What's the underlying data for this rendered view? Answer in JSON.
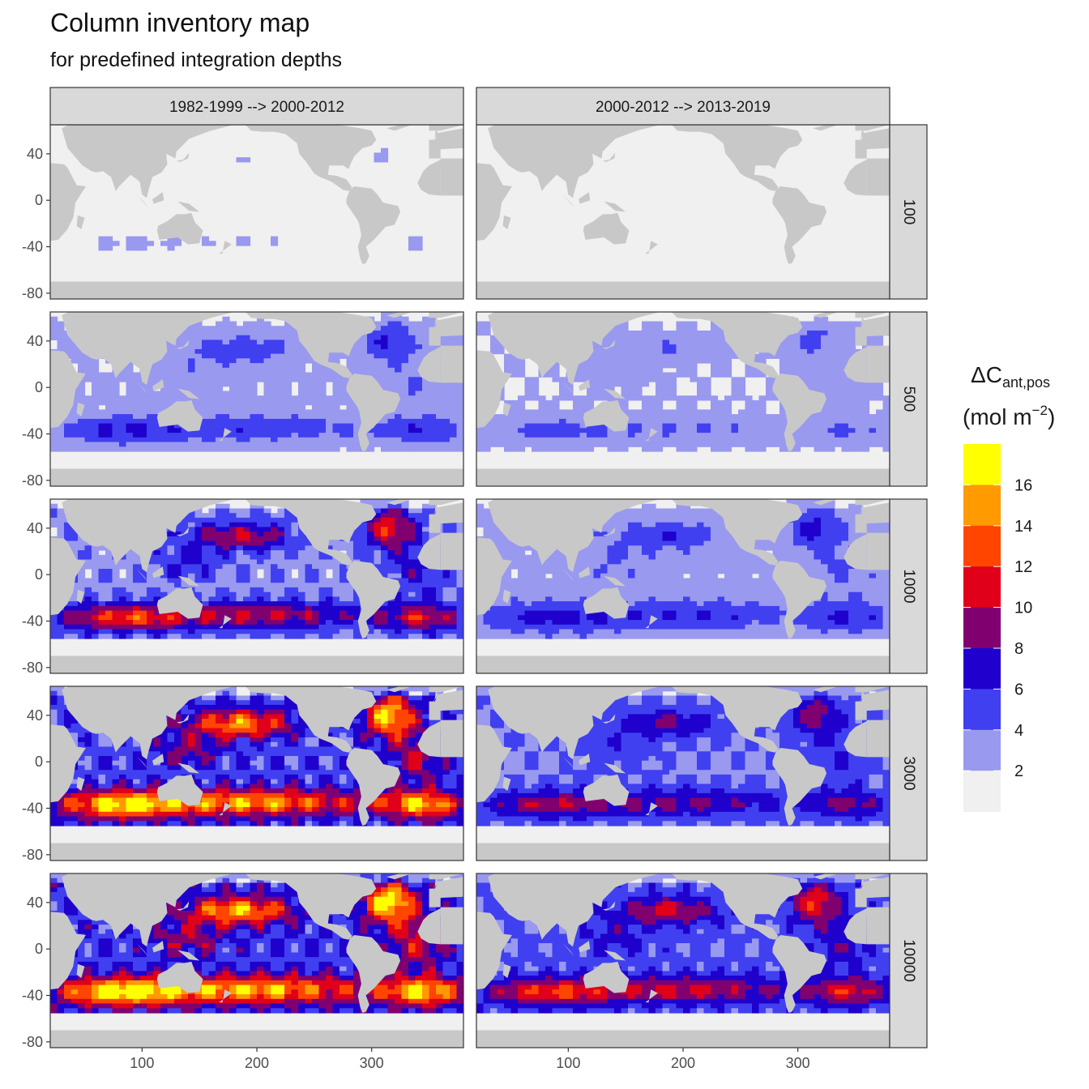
{
  "title": "Column inventory map",
  "subtitle": "for predefined integration depths",
  "chart_data": {
    "type": "heatmap",
    "title": "Column inventory map",
    "subtitle": "for predefined integration depths",
    "xlabel": "",
    "ylabel": "",
    "x_ticks": [
      100,
      200,
      300
    ],
    "y_ticks": [
      40,
      0,
      -40,
      -80
    ],
    "xlim": [
      20,
      380
    ],
    "ylim": [
      -85,
      65
    ],
    "columns": [
      "1982-1999 --> 2000-2012",
      "2000-2012 --> 2013-2019"
    ],
    "rows": [
      "100",
      "500",
      "1000",
      "3000",
      "10000"
    ],
    "legend": {
      "title_main": "ΔC",
      "title_sub": "ant,pos",
      "unit_main": "(mol m",
      "unit_sup": "−2",
      "unit_close": ")",
      "position": "right",
      "tick_labels": [
        "16",
        "14",
        "12",
        "10",
        "8",
        "6",
        "4",
        "2"
      ],
      "bins": [
        {
          "label": "0-2",
          "color": "#f0f0f0"
        },
        {
          "label": "2-4",
          "color": "#9999f0"
        },
        {
          "label": "4-6",
          "color": "#4040f0"
        },
        {
          "label": "6-8",
          "color": "#1f00cc"
        },
        {
          "label": "8-10",
          "color": "#800070"
        },
        {
          "label": "10-12",
          "color": "#e0001a"
        },
        {
          "label": "12-14",
          "color": "#ff4500"
        },
        {
          "label": "14-16",
          "color": "#ff9a00"
        },
        {
          "label": ">16",
          "color": "#ffff00"
        }
      ]
    },
    "land_color": "#c8c8c8",
    "panel_levels": [
      {
        "depth": "100",
        "period": "1982-1999 --> 2000-2012",
        "base": 0.0,
        "gain": 0.6
      },
      {
        "depth": "100",
        "period": "2000-2012 --> 2013-2019",
        "base": 0.0,
        "gain": 0.0
      },
      {
        "depth": "500",
        "period": "1982-1999 --> 2000-2012",
        "base": 2.4,
        "gain": 1.0
      },
      {
        "depth": "500",
        "period": "2000-2012 --> 2013-2019",
        "base": 2.0,
        "gain": 0.7
      },
      {
        "depth": "1000",
        "period": "1982-1999 --> 2000-2012",
        "base": 3.4,
        "gain": 2.3
      },
      {
        "depth": "1000",
        "period": "2000-2012 --> 2013-2019",
        "base": 2.7,
        "gain": 1.1
      },
      {
        "depth": "3000",
        "period": "1982-1999 --> 2000-2012",
        "base": 5.0,
        "gain": 3.2
      },
      {
        "depth": "3000",
        "period": "2000-2012 --> 2013-2019",
        "base": 3.9,
        "gain": 1.5
      },
      {
        "depth": "10000",
        "period": "1982-1999 --> 2000-2012",
        "base": 5.6,
        "gain": 3.3
      },
      {
        "depth": "10000",
        "period": "2000-2012 --> 2013-2019",
        "base": 4.5,
        "gain": 2.0
      }
    ]
  }
}
